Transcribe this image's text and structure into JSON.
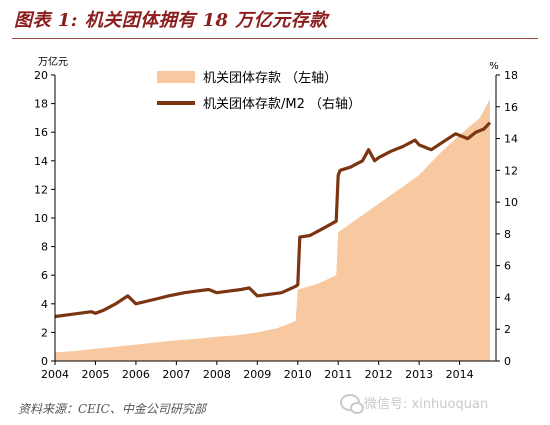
{
  "figure": {
    "title": "图表 1: 机关团体拥有 18 万亿元存款",
    "source": "资料来源：CEIC、中金公司研究部",
    "watermark": "微信号: xinhuoquan"
  },
  "colors": {
    "area": "#f8c9a0",
    "line": "#7a3511",
    "title": "#8b1d1d"
  },
  "chart_data": {
    "type": "area",
    "y_left_unit": "万亿元",
    "y_right_unit": "%",
    "xlim": [
      2004,
      2014.9
    ],
    "ylim_left": [
      0,
      20
    ],
    "ylim_right": [
      0,
      18
    ],
    "xticks": [
      "2004",
      "2005",
      "2006",
      "2007",
      "2008",
      "2009",
      "2010",
      "2011",
      "2012",
      "2013",
      "2014"
    ],
    "yticks_left": [
      0,
      2,
      4,
      6,
      8,
      10,
      12,
      14,
      16,
      18,
      20
    ],
    "yticks_right": [
      0,
      2,
      4,
      6,
      8,
      10,
      12,
      14,
      16,
      18
    ],
    "legend_position": "top-center",
    "series": [
      {
        "name": "机关团体存款 （左轴）",
        "type": "area",
        "axis": "left",
        "x": [
          2004.0,
          2004.5,
          2005.0,
          2005.5,
          2006.0,
          2006.5,
          2007.0,
          2007.5,
          2008.0,
          2008.5,
          2009.0,
          2009.5,
          2009.95,
          2010.0,
          2010.5,
          2010.95,
          2011.0,
          2011.5,
          2012.0,
          2012.5,
          2013.0,
          2013.5,
          2014.0,
          2014.5,
          2014.75
        ],
        "values": [
          0.6,
          0.7,
          0.85,
          1.0,
          1.15,
          1.3,
          1.45,
          1.55,
          1.7,
          1.8,
          2.0,
          2.3,
          2.8,
          5.0,
          5.4,
          6.0,
          9.0,
          10.0,
          11.0,
          12.0,
          13.0,
          14.5,
          15.8,
          17.0,
          18.3
        ]
      },
      {
        "name": "机关团体存款/M2 （右轴）",
        "type": "line",
        "axis": "right",
        "x": [
          2004.0,
          2004.3,
          2004.6,
          2004.9,
          2005.0,
          2005.2,
          2005.5,
          2005.8,
          2006.0,
          2006.5,
          2006.8,
          2007.0,
          2007.2,
          2007.5,
          2007.8,
          2008.0,
          2008.3,
          2008.6,
          2008.8,
          2009.0,
          2009.3,
          2009.6,
          2009.95,
          2010.0,
          2010.05,
          2010.3,
          2010.6,
          2010.95,
          2011.0,
          2011.05,
          2011.3,
          2011.6,
          2011.75,
          2011.9,
          2012.0,
          2012.3,
          2012.6,
          2012.9,
          2013.0,
          2013.3,
          2013.6,
          2013.9,
          2014.0,
          2014.2,
          2014.4,
          2014.6,
          2014.75
        ],
        "values": [
          2.8,
          2.9,
          3.0,
          3.1,
          3.0,
          3.2,
          3.6,
          4.1,
          3.6,
          3.9,
          4.1,
          4.2,
          4.3,
          4.4,
          4.5,
          4.3,
          4.4,
          4.5,
          4.6,
          4.1,
          4.2,
          4.3,
          4.7,
          4.8,
          7.8,
          7.9,
          8.3,
          8.8,
          11.7,
          12.0,
          12.2,
          12.6,
          13.3,
          12.6,
          12.8,
          13.2,
          13.5,
          13.9,
          13.6,
          13.3,
          13.8,
          14.3,
          14.2,
          14.0,
          14.4,
          14.6,
          15.0
        ]
      }
    ]
  }
}
